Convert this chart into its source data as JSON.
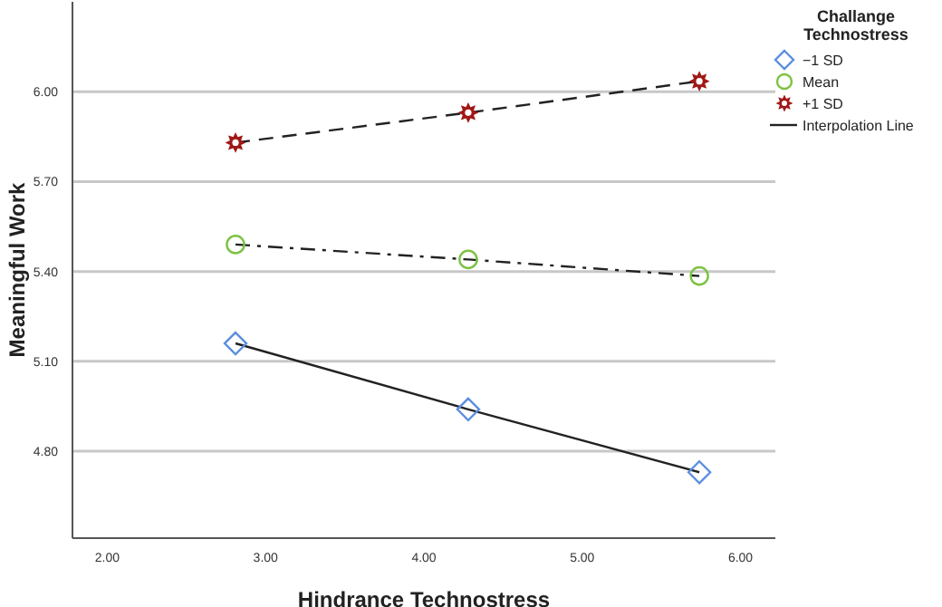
{
  "chart_data": {
    "type": "line",
    "xlabel": "Hindrance Technostress",
    "ylabel": "Meaningful Work",
    "legend_title": "Challange Technostress",
    "x": [
      2.81,
      4.28,
      5.74
    ],
    "series": [
      {
        "name": "−1 SD",
        "color": "#5b8fe0",
        "marker": "diamond",
        "line_style": "solid",
        "values": [
          5.16,
          4.94,
          4.73
        ]
      },
      {
        "name": "Mean",
        "color": "#7cc242",
        "marker": "circle",
        "line_style": "dashdot",
        "values": [
          5.49,
          5.44,
          5.385
        ]
      },
      {
        "name": "+1 SD",
        "color": "#a01818",
        "marker": "star",
        "line_style": "dashed",
        "values": [
          5.83,
          5.93,
          6.035
        ]
      }
    ],
    "annotations": [
      "Interpolation Line"
    ],
    "xlim": [
      1.78,
      6.22
    ],
    "xticks": [
      {
        "value": 2,
        "label": "2.00"
      },
      {
        "value": 3,
        "label": "3.00"
      },
      {
        "value": 4,
        "label": "4.00"
      },
      {
        "value": 5,
        "label": "5.00"
      },
      {
        "value": 6,
        "label": "6.00"
      }
    ],
    "ylim": [
      4.51,
      6.3
    ],
    "yticks": [
      {
        "value": 4.8,
        "label": "4.80"
      },
      {
        "value": 5.1,
        "label": "5.10"
      },
      {
        "value": 5.4,
        "label": "5.40"
      },
      {
        "value": 5.7,
        "label": "5.70"
      },
      {
        "value": 6,
        "label": "6.00"
      }
    ],
    "grid": "y",
    "legend": "top right"
  }
}
